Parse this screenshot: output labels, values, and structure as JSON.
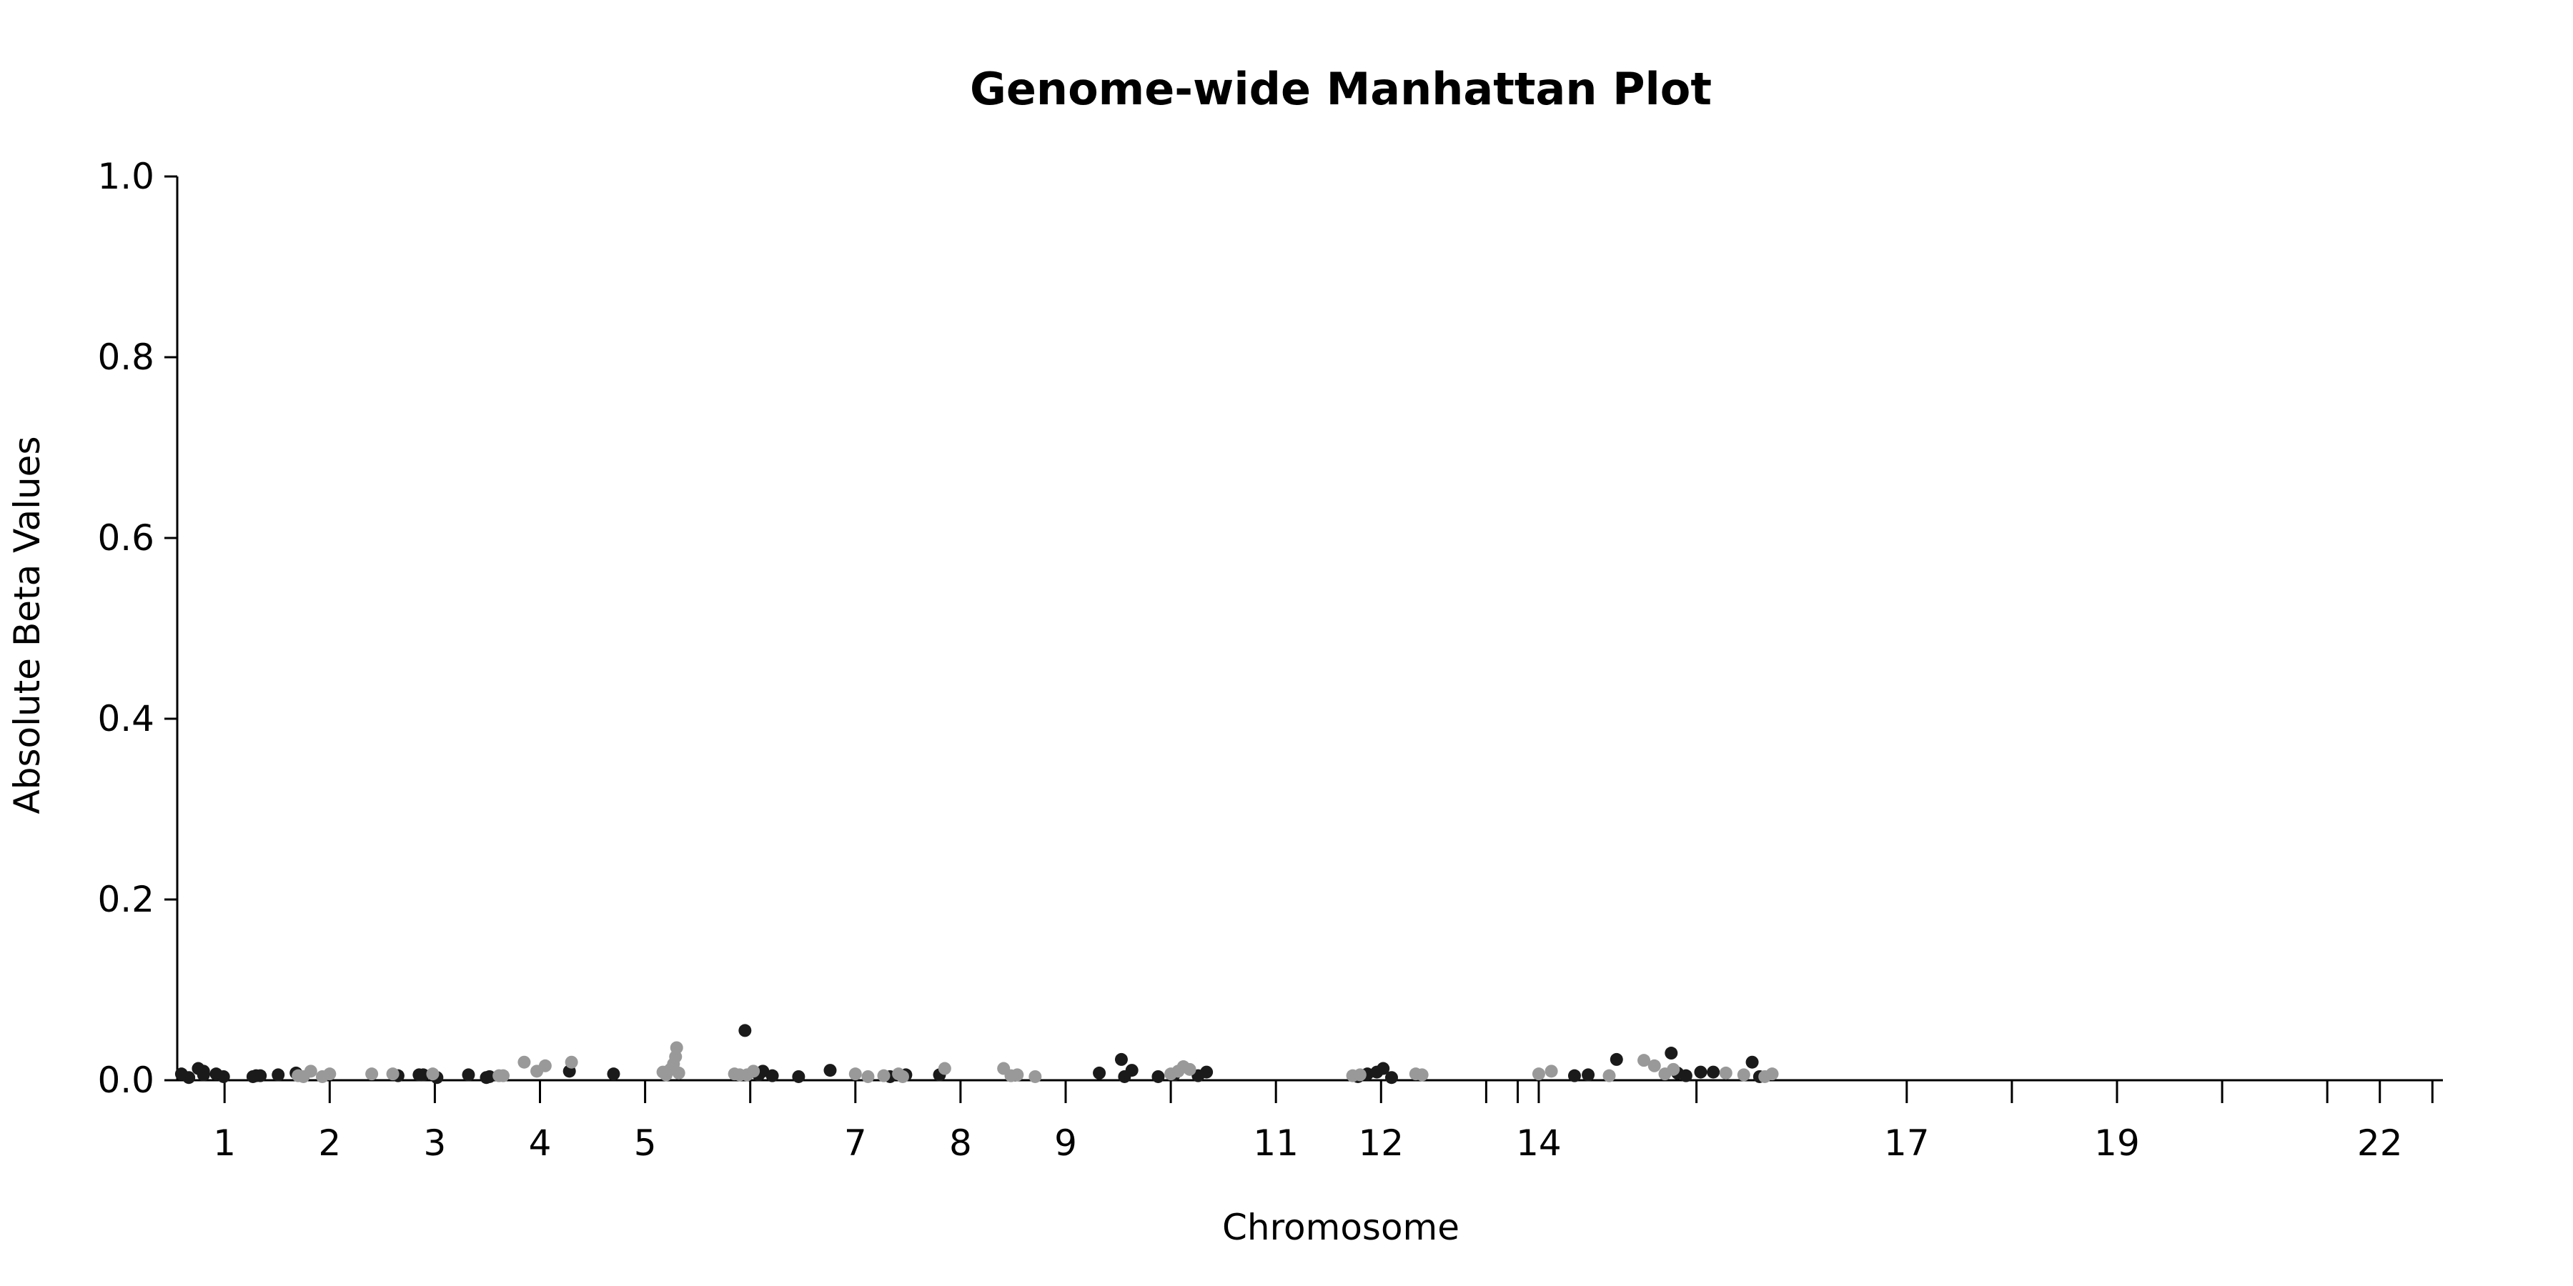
{
  "chart_data": {
    "type": "scatter",
    "title": "Genome-wide Manhattan Plot",
    "xlabel": "Chromosome",
    "ylabel": "Absolute Beta Values",
    "ylim": [
      0,
      1.0
    ],
    "xlim": [
      0.55,
      22.1
    ],
    "yticks": [
      0.0,
      0.2,
      0.4,
      0.6,
      0.8,
      1.0
    ],
    "ytick_labels": [
      "0.0",
      "0.2",
      "0.4",
      "0.6",
      "0.8",
      "1.0"
    ],
    "xticks": [
      {
        "pos": 1.0,
        "label": "1"
      },
      {
        "pos": 2.0,
        "label": "2"
      },
      {
        "pos": 3.0,
        "label": "3"
      },
      {
        "pos": 4.0,
        "label": "4"
      },
      {
        "pos": 5.0,
        "label": "5"
      },
      {
        "pos": 6.0,
        "label": ""
      },
      {
        "pos": 7.0,
        "label": "7"
      },
      {
        "pos": 8.0,
        "label": "8"
      },
      {
        "pos": 9.0,
        "label": "9"
      },
      {
        "pos": 10.0,
        "label": ""
      },
      {
        "pos": 11.0,
        "label": "11"
      },
      {
        "pos": 12.0,
        "label": "12"
      },
      {
        "pos": 13.0,
        "label": ""
      },
      {
        "pos": 13.3,
        "label": ""
      },
      {
        "pos": 13.5,
        "label": "14"
      },
      {
        "pos": 15.0,
        "label": ""
      },
      {
        "pos": 17.0,
        "label": "17"
      },
      {
        "pos": 18.0,
        "label": ""
      },
      {
        "pos": 19.0,
        "label": "19"
      },
      {
        "pos": 20.0,
        "label": ""
      },
      {
        "pos": 21.0,
        "label": ""
      },
      {
        "pos": 21.5,
        "label": "22"
      },
      {
        "pos": 22.0,
        "label": ""
      }
    ],
    "colors": {
      "odd": "#1a1a1a",
      "even": "#999999"
    },
    "series": [
      {
        "color_key": "odd",
        "points": [
          [
            0.59,
            0.007
          ],
          [
            0.66,
            0.003
          ],
          [
            0.75,
            0.013
          ],
          [
            0.8,
            0.01
          ],
          [
            0.8,
            0.006
          ],
          [
            0.92,
            0.007
          ],
          [
            0.99,
            0.004
          ],
          [
            1.27,
            0.004
          ],
          [
            1.3,
            0.005
          ],
          [
            1.34,
            0.005
          ],
          [
            1.51,
            0.006
          ],
          [
            1.68,
            0.008
          ],
          [
            2.65,
            0.005
          ],
          [
            2.85,
            0.006
          ],
          [
            2.89,
            0.006
          ],
          [
            3.02,
            0.003
          ],
          [
            3.32,
            0.006
          ],
          [
            3.49,
            0.003
          ],
          [
            3.52,
            0.004
          ],
          [
            4.28,
            0.01
          ],
          [
            4.7,
            0.007
          ],
          [
            5.95,
            0.055
          ],
          [
            6.08,
            0.006
          ],
          [
            6.12,
            0.01
          ],
          [
            6.21,
            0.005
          ],
          [
            6.46,
            0.004
          ],
          [
            6.76,
            0.011
          ],
          [
            7.33,
            0.004
          ],
          [
            7.48,
            0.006
          ],
          [
            7.8,
            0.006
          ],
          [
            9.32,
            0.008
          ],
          [
            9.53,
            0.023
          ],
          [
            9.56,
            0.004
          ],
          [
            9.63,
            0.011
          ],
          [
            9.88,
            0.004
          ],
          [
            10.03,
            0.006
          ],
          [
            10.26,
            0.005
          ],
          [
            10.34,
            0.009
          ],
          [
            11.78,
            0.004
          ],
          [
            11.87,
            0.007
          ],
          [
            11.96,
            0.009
          ],
          [
            12.02,
            0.013
          ],
          [
            12.1,
            0.003
          ],
          [
            13.84,
            0.005
          ],
          [
            13.97,
            0.006
          ],
          [
            14.24,
            0.023
          ],
          [
            14.76,
            0.03
          ],
          [
            14.82,
            0.008
          ],
          [
            14.9,
            0.005
          ],
          [
            15.04,
            0.009
          ],
          [
            15.16,
            0.009
          ],
          [
            15.53,
            0.02
          ],
          [
            15.6,
            0.004
          ]
        ]
      },
      {
        "color_key": "even",
        "points": [
          [
            1.7,
            0.005
          ],
          [
            1.75,
            0.004
          ],
          [
            1.82,
            0.01
          ],
          [
            1.93,
            0.004
          ],
          [
            2.0,
            0.007
          ],
          [
            2.4,
            0.007
          ],
          [
            2.6,
            0.007
          ],
          [
            2.98,
            0.007
          ],
          [
            3.61,
            0.005
          ],
          [
            3.65,
            0.005
          ],
          [
            3.85,
            0.02
          ],
          [
            3.97,
            0.01
          ],
          [
            4.05,
            0.016
          ],
          [
            4.3,
            0.02
          ],
          [
            5.17,
            0.009
          ],
          [
            5.2,
            0.006
          ],
          [
            5.24,
            0.012
          ],
          [
            5.27,
            0.018
          ],
          [
            5.29,
            0.026
          ],
          [
            5.3,
            0.036
          ],
          [
            5.32,
            0.008
          ],
          [
            5.85,
            0.007
          ],
          [
            5.9,
            0.006
          ],
          [
            5.97,
            0.006
          ],
          [
            6.03,
            0.01
          ],
          [
            7.0,
            0.007
          ],
          [
            7.12,
            0.004
          ],
          [
            7.27,
            0.005
          ],
          [
            7.41,
            0.007
          ],
          [
            7.45,
            0.004
          ],
          [
            7.85,
            0.013
          ],
          [
            8.41,
            0.013
          ],
          [
            8.48,
            0.005
          ],
          [
            8.54,
            0.006
          ],
          [
            8.71,
            0.004
          ],
          [
            10.0,
            0.007
          ],
          [
            10.07,
            0.01
          ],
          [
            10.12,
            0.015
          ],
          [
            10.18,
            0.012
          ],
          [
            11.73,
            0.005
          ],
          [
            11.8,
            0.006
          ],
          [
            12.33,
            0.007
          ],
          [
            12.39,
            0.006
          ],
          [
            13.5,
            0.007
          ],
          [
            13.62,
            0.01
          ],
          [
            14.17,
            0.005
          ],
          [
            14.5,
            0.022
          ],
          [
            14.6,
            0.016
          ],
          [
            14.7,
            0.007
          ],
          [
            14.78,
            0.012
          ],
          [
            15.28,
            0.008
          ],
          [
            15.45,
            0.006
          ],
          [
            15.65,
            0.004
          ],
          [
            15.72,
            0.007
          ]
        ]
      }
    ]
  }
}
